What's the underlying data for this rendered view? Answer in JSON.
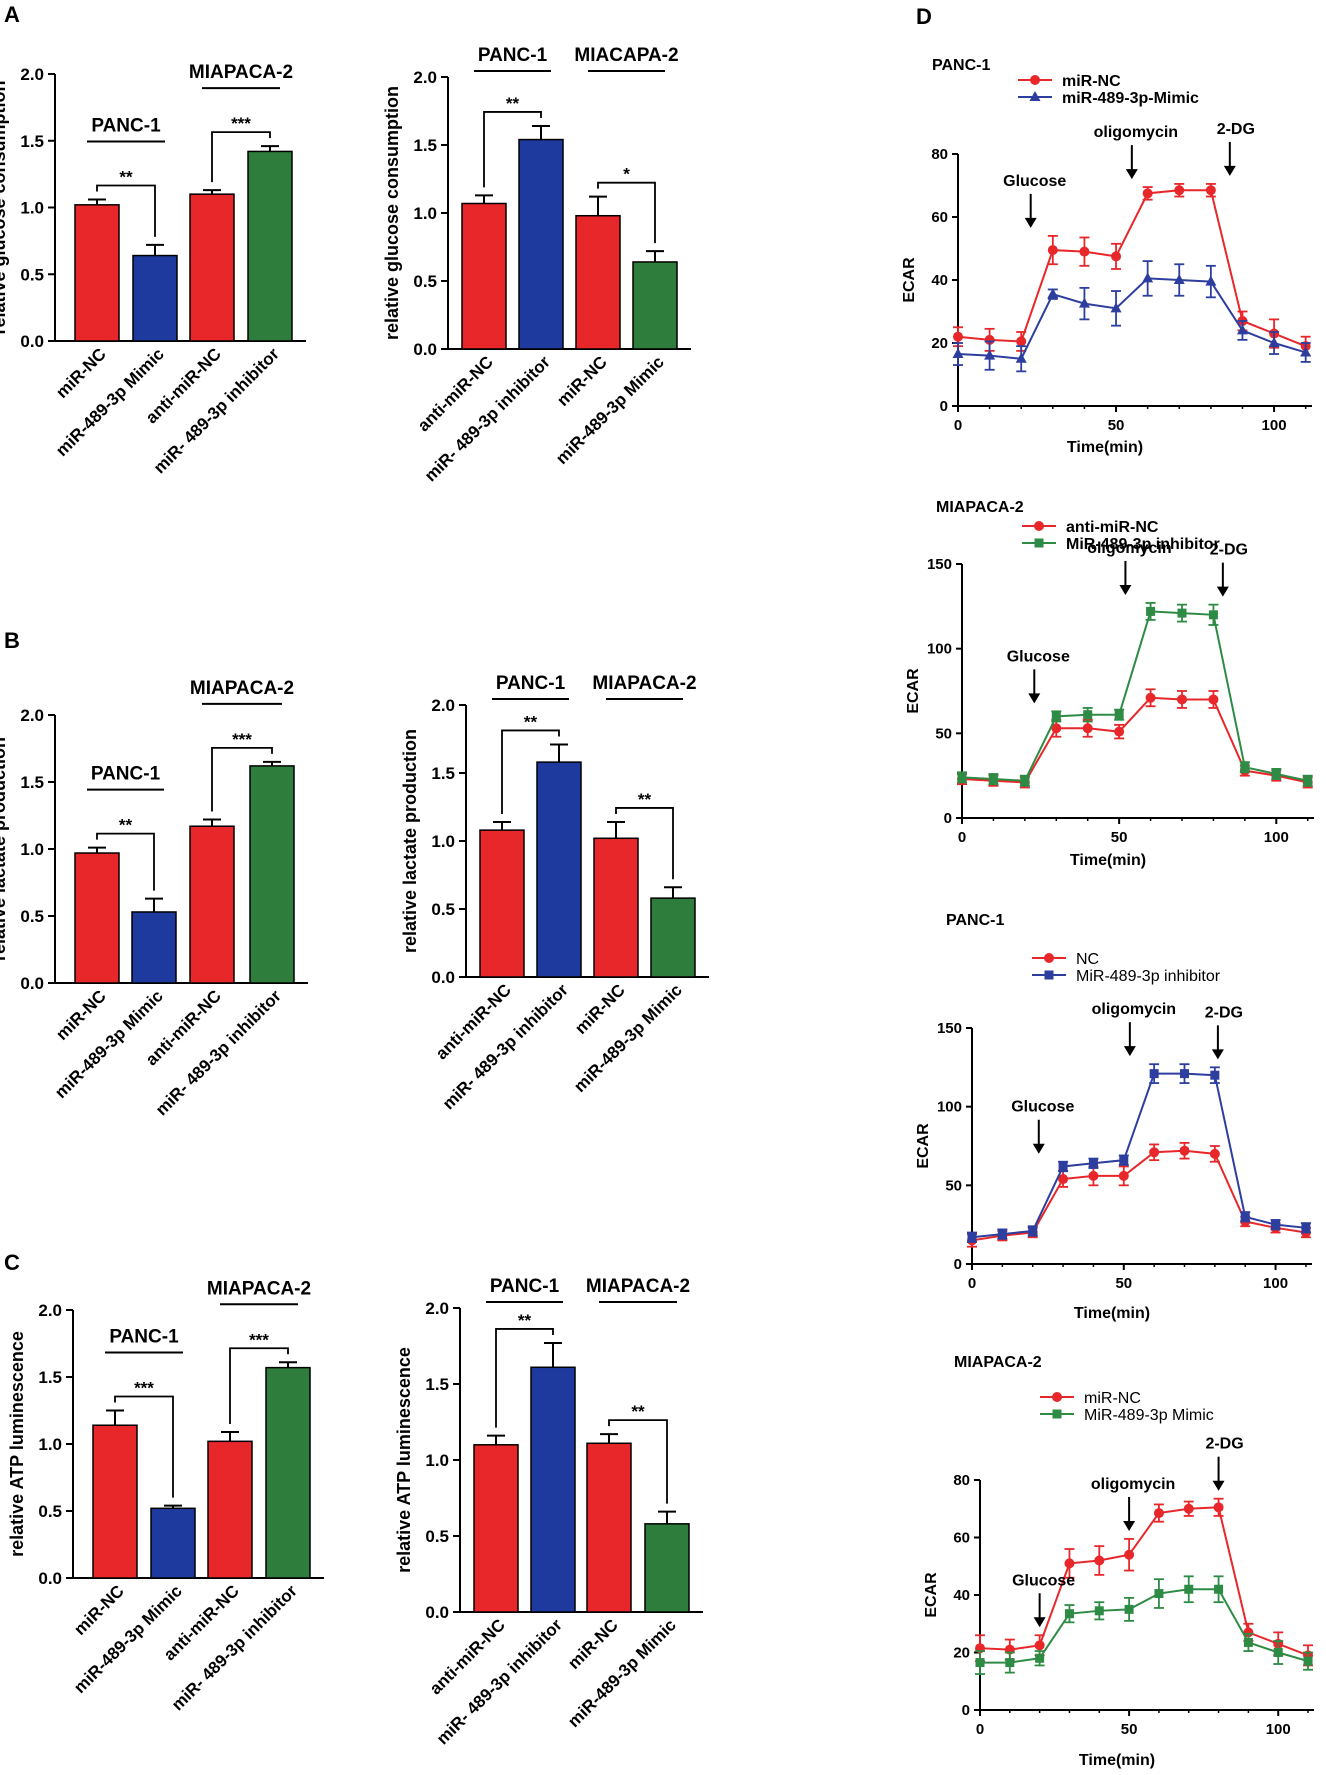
{
  "panel_labels": [
    "A",
    "B",
    "C",
    "D"
  ],
  "colors": {
    "red": "#e8272a",
    "blue": "#1f3a9e",
    "green": "#2e7d3c",
    "ecar_blue": "#2d3e9f",
    "ecar_green": "#2e8b45"
  },
  "chart_data": [
    {
      "type": "bar",
      "panel": "A",
      "ylabel": "relative glucose consumption",
      "ylim": [
        0,
        2.0
      ],
      "yticks": [
        "0.0",
        "0.5",
        "1.0",
        "1.5",
        "2.0"
      ],
      "categories": [
        "miR-NC",
        "miR-489-3p Mimic",
        "anti-miR-NC",
        "miR- 489-3p inhibitor"
      ],
      "values": [
        1.02,
        0.64,
        1.1,
        1.42
      ],
      "errors": [
        0.04,
        0.08,
        0.03,
        0.04
      ],
      "colors": [
        "red",
        "blue",
        "red",
        "green"
      ],
      "groups": [
        {
          "label": "PANC-1",
          "from": 0,
          "to": 1
        },
        {
          "label": "MIAPACA-2",
          "from": 2,
          "to": 3
        }
      ],
      "significance": [
        {
          "from": 0,
          "to": 1,
          "label": "**"
        },
        {
          "from": 2,
          "to": 3,
          "label": "***"
        }
      ]
    },
    {
      "type": "bar",
      "panel": "A",
      "ylabel": "relative glucose consumption",
      "ylim": [
        0,
        2.0
      ],
      "yticks": [
        "0.0",
        "0.5",
        "1.0",
        "1.5",
        "2.0"
      ],
      "categories": [
        "anti-miR-NC",
        "miR- 489-3p inhibitor",
        "miR-NC",
        "miR-489-3p Mimic"
      ],
      "values": [
        1.07,
        1.54,
        0.98,
        0.64
      ],
      "errors": [
        0.06,
        0.1,
        0.14,
        0.08
      ],
      "colors": [
        "red",
        "blue",
        "red",
        "green"
      ],
      "groups": [
        {
          "label": "PANC-1",
          "from": 0,
          "to": 1
        },
        {
          "label": "MIACAPA-2",
          "from": 2,
          "to": 3
        }
      ],
      "significance": [
        {
          "from": 0,
          "to": 1,
          "label": "**"
        },
        {
          "from": 2,
          "to": 3,
          "label": "*"
        }
      ]
    },
    {
      "type": "bar",
      "panel": "B",
      "ylabel": "relative lactate production",
      "ylim": [
        0,
        2.0
      ],
      "yticks": [
        "0.0",
        "0.5",
        "1.0",
        "1.5",
        "2.0"
      ],
      "categories": [
        "miR-NC",
        "miR-489-3p Mimic",
        "anti-miR-NC",
        "miR- 489-3p inhibitor"
      ],
      "values": [
        0.97,
        0.53,
        1.17,
        1.62
      ],
      "errors": [
        0.04,
        0.1,
        0.05,
        0.03
      ],
      "colors": [
        "red",
        "blue",
        "red",
        "green"
      ],
      "groups": [
        {
          "label": "PANC-1",
          "from": 0,
          "to": 1
        },
        {
          "label": "MIAPACA-2",
          "from": 2,
          "to": 3
        }
      ],
      "significance": [
        {
          "from": 0,
          "to": 1,
          "label": "**"
        },
        {
          "from": 2,
          "to": 3,
          "label": "***"
        }
      ]
    },
    {
      "type": "bar",
      "panel": "B",
      "ylabel": "relative lactate production",
      "ylim": [
        0,
        2.0
      ],
      "yticks": [
        "0.0",
        "0.5",
        "1.0",
        "1.5",
        "2.0"
      ],
      "categories": [
        "anti-miR-NC",
        "miR- 489-3p inhibitor",
        "miR-NC",
        "miR-489-3p Mimic"
      ],
      "values": [
        1.08,
        1.58,
        1.02,
        0.58
      ],
      "errors": [
        0.06,
        0.13,
        0.12,
        0.08
      ],
      "colors": [
        "red",
        "blue",
        "red",
        "green"
      ],
      "groups": [
        {
          "label": "PANC-1",
          "from": 0,
          "to": 1
        },
        {
          "label": "MIAPACA-2",
          "from": 2,
          "to": 3
        }
      ],
      "significance": [
        {
          "from": 0,
          "to": 1,
          "label": "**"
        },
        {
          "from": 2,
          "to": 3,
          "label": "**"
        }
      ]
    },
    {
      "type": "bar",
      "panel": "C",
      "ylabel": "relative ATP luminescence",
      "ylim": [
        0,
        2.0
      ],
      "yticks": [
        "0.0",
        "0.5",
        "1.0",
        "1.5",
        "2.0"
      ],
      "categories": [
        "miR-NC",
        "miR-489-3p Mimic",
        "anti-miR-NC",
        "miR- 489-3p inhibitor"
      ],
      "values": [
        1.14,
        0.52,
        1.02,
        1.57
      ],
      "errors": [
        0.11,
        0.02,
        0.07,
        0.04
      ],
      "colors": [
        "red",
        "blue",
        "red",
        "green"
      ],
      "groups": [
        {
          "label": "PANC-1",
          "from": 0,
          "to": 1
        },
        {
          "label": "MIAPACA-2",
          "from": 2,
          "to": 3
        }
      ],
      "significance": [
        {
          "from": 0,
          "to": 1,
          "label": "***"
        },
        {
          "from": 2,
          "to": 3,
          "label": "***"
        }
      ]
    },
    {
      "type": "bar",
      "panel": "C",
      "ylabel": "relative ATP luminescence",
      "ylim": [
        0,
        2.0
      ],
      "yticks": [
        "0.0",
        "0.5",
        "1.0",
        "1.5",
        "2.0"
      ],
      "categories": [
        "anti-miR-NC",
        "miR- 489-3p inhibitor",
        "miR-NC",
        "miR-489-3p Mimic"
      ],
      "values": [
        1.1,
        1.61,
        1.11,
        0.58
      ],
      "errors": [
        0.06,
        0.16,
        0.06,
        0.08
      ],
      "colors": [
        "red",
        "blue",
        "red",
        "green"
      ],
      "groups": [
        {
          "label": "PANC-1",
          "from": 0,
          "to": 1
        },
        {
          "label": "MIAPACA-2",
          "from": 2,
          "to": 3
        }
      ],
      "significance": [
        {
          "from": 0,
          "to": 1,
          "label": "**"
        },
        {
          "from": 2,
          "to": 3,
          "label": "**"
        }
      ]
    },
    {
      "type": "line",
      "panel": "D",
      "title": "PANC-1",
      "ylabel": "ECAR",
      "xlabel": "Time(min)",
      "xlim": [
        0,
        112
      ],
      "ylim": [
        0,
        80
      ],
      "xticks": [
        0,
        50,
        100
      ],
      "yticks": [
        0,
        20,
        40,
        60,
        80
      ],
      "x": [
        0,
        10,
        20,
        30,
        40,
        50,
        60,
        70,
        80,
        90,
        100,
        110
      ],
      "series": [
        {
          "name": "miR-NC",
          "color": "red",
          "marker": "circle",
          "values": [
            22,
            21,
            20.5,
            49.5,
            49,
            47.5,
            67.5,
            68.5,
            68.5,
            27,
            23,
            19
          ],
          "errors": [
            3,
            3.5,
            3,
            4.5,
            4.5,
            4,
            2,
            2,
            2,
            3,
            4.5,
            3
          ]
        },
        {
          "name": "miR-489-3p-Mimic",
          "color": "ecar_blue",
          "marker": "triangle",
          "values": [
            16.5,
            16,
            15,
            35.5,
            32.5,
            31,
            40.5,
            40,
            39.5,
            24,
            20,
            17
          ],
          "errors": [
            3.5,
            4.5,
            4,
            1.5,
            5,
            5.5,
            5.5,
            5,
            5,
            3,
            3.5,
            3
          ]
        }
      ],
      "annotations": [
        {
          "label": "Glucose",
          "x": 23
        },
        {
          "label": "oligomycin",
          "x": 55
        },
        {
          "label": "2-DG",
          "x": 86
        }
      ]
    },
    {
      "type": "line",
      "panel": "D",
      "title": "MIAPACA-2",
      "ylabel": "ECAR",
      "xlabel": "Time(min)",
      "xlim": [
        0,
        112
      ],
      "ylim": [
        0,
        150
      ],
      "xticks": [
        0,
        50,
        100
      ],
      "yticks": [
        0,
        50,
        100,
        150
      ],
      "x": [
        0,
        10,
        20,
        30,
        40,
        50,
        60,
        70,
        80,
        90,
        100,
        110
      ],
      "series": [
        {
          "name": "anti-miR-NC",
          "color": "red",
          "marker": "circle",
          "values": [
            23,
            22,
            21,
            53,
            53,
            51,
            71,
            70,
            70,
            28,
            25,
            21
          ],
          "errors": [
            3,
            3,
            3,
            5,
            5,
            4,
            5,
            5,
            5,
            3,
            3,
            3
          ]
        },
        {
          "name": "MiR-489-3p inhibitor",
          "color": "ecar_green",
          "marker": "square",
          "values": [
            24,
            23,
            22,
            60,
            61,
            61,
            122,
            121,
            120,
            30,
            26,
            22
          ],
          "errors": [
            3,
            3,
            3,
            3,
            4,
            3,
            5,
            5,
            6,
            3,
            3,
            3
          ]
        }
      ],
      "annotations": [
        {
          "label": "Glucose",
          "x": 23
        },
        {
          "label": "oligomycin",
          "x": 52
        },
        {
          "label": "2-DG",
          "x": 83
        }
      ]
    },
    {
      "type": "line",
      "panel": "D",
      "title": "PANC-1",
      "ylabel": "ECAR",
      "xlabel": "Time(min)",
      "xlim": [
        0,
        112
      ],
      "ylim": [
        0,
        150
      ],
      "xticks": [
        0,
        50,
        100
      ],
      "yticks": [
        0,
        50,
        100,
        150
      ],
      "x": [
        0,
        10,
        20,
        30,
        40,
        50,
        60,
        70,
        80,
        90,
        100,
        110
      ],
      "series": [
        {
          "name": "NC",
          "color": "red",
          "marker": "circle",
          "values": [
            15,
            18,
            20,
            54,
            56,
            56,
            71,
            72,
            70,
            27,
            23,
            20
          ],
          "errors": [
            4,
            3,
            3,
            5,
            6,
            6,
            5,
            5,
            5,
            3,
            3,
            3
          ]
        },
        {
          "name": "MiR-489-3p inhibitor",
          "color": "ecar_blue",
          "marker": "square",
          "values": [
            17,
            19,
            21,
            62,
            64,
            66,
            121,
            121,
            120,
            30,
            25,
            23
          ],
          "errors": [
            3,
            3,
            3,
            3,
            3,
            3,
            6,
            6,
            5,
            3,
            3,
            3
          ]
        }
      ],
      "annotations": [
        {
          "label": "Glucose",
          "x": 22
        },
        {
          "label": "oligomycin",
          "x": 52
        },
        {
          "label": "2-DG",
          "x": 81
        }
      ]
    },
    {
      "type": "line",
      "panel": "D",
      "title": "MIAPACA-2",
      "ylabel": "ECAR",
      "xlabel": "Time(min)",
      "xlim": [
        0,
        112
      ],
      "ylim": [
        0,
        80
      ],
      "xticks": [
        0,
        50,
        100
      ],
      "yticks": [
        0,
        20,
        40,
        60,
        80
      ],
      "x": [
        0,
        10,
        20,
        30,
        40,
        50,
        60,
        70,
        80,
        90,
        100,
        110
      ],
      "series": [
        {
          "name": "miR-NC",
          "color": "red",
          "marker": "circle",
          "values": [
            21.5,
            21,
            22.5,
            51,
            52,
            54,
            68.5,
            70,
            70.5,
            27,
            23,
            19
          ],
          "errors": [
            4.5,
            3.5,
            3.5,
            5,
            5,
            5.5,
            3,
            2.5,
            3,
            3,
            4,
            3.5
          ]
        },
        {
          "name": "MiR-489-3p Mimic",
          "color": "ecar_green",
          "marker": "square",
          "values": [
            16.5,
            16.5,
            18,
            33.5,
            34.5,
            35,
            40.5,
            42,
            42,
            23.5,
            20,
            17
          ],
          "errors": [
            4,
            3.5,
            2.5,
            3,
            3,
            4,
            5,
            4.5,
            4.5,
            3,
            4,
            3
          ]
        }
      ],
      "annotations": [
        {
          "label": "Glucose",
          "x": 20
        },
        {
          "label": "oligomycin",
          "x": 50
        },
        {
          "label": "2-DG",
          "x": 80
        }
      ]
    }
  ]
}
